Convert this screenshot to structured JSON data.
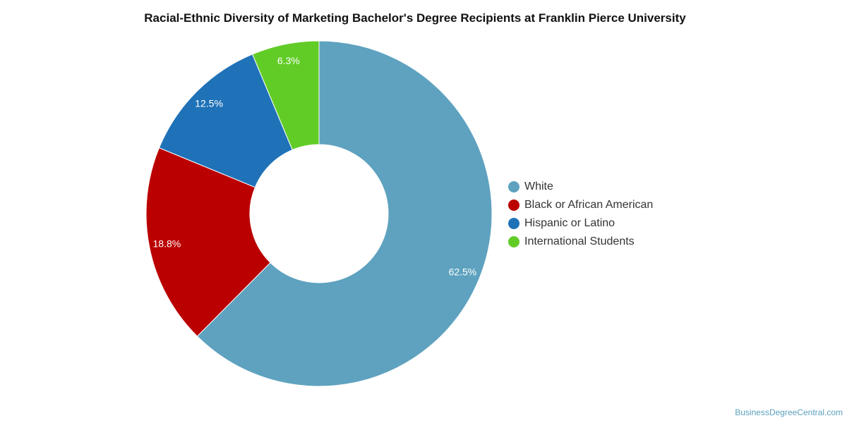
{
  "chart_data": {
    "type": "pie",
    "title": "Racial-Ethnic Diversity of Marketing Bachelor's Degree Recipients at Franklin Pierce University",
    "categories": [
      "White",
      "Black or African American",
      "Hispanic or Latino",
      "International Students"
    ],
    "values": [
      62.5,
      18.8,
      12.5,
      6.3
    ],
    "labels": [
      "62.5%",
      "18.8%",
      "12.5%",
      "6.3%"
    ],
    "colors": [
      "#5ea2bf",
      "#bb0000",
      "#1f72b8",
      "#62cc26"
    ],
    "donut": true,
    "legend_position": "right"
  },
  "watermark": "BusinessDegreeCentral.com"
}
